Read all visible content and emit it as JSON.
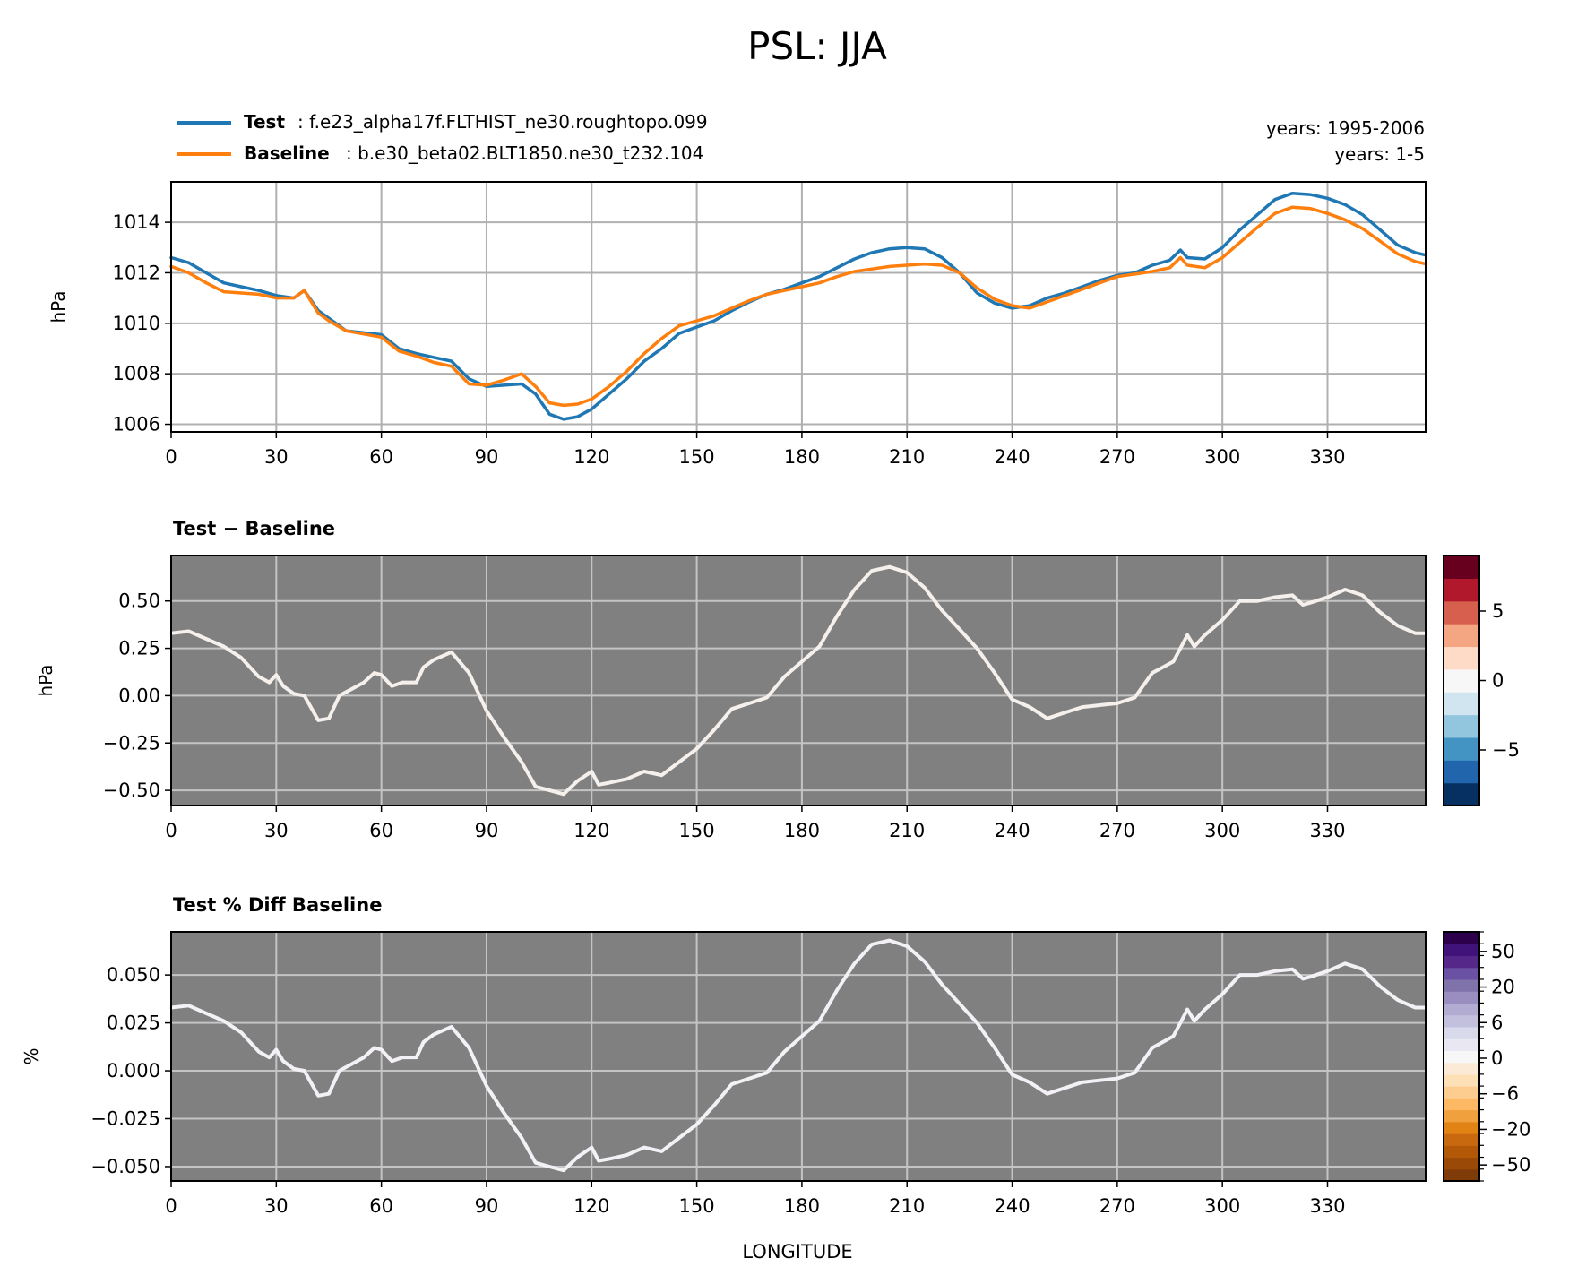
{
  "figure": {
    "title": "PSL: JJA",
    "legend": [
      {
        "key": "Test",
        "label": ": f.e23_alpha17f.FLTHIST_ne30.roughtopo.099",
        "color": "#1f77b4"
      },
      {
        "key": "Baseline",
        "label": ": b.e30_beta02.BLT1850.ne30_t232.104",
        "color": "#ff7f0e"
      }
    ],
    "years": [
      "years: 1995-2006",
      "years: 1-5"
    ],
    "xlabel": "LONGITUDE"
  },
  "chart_data": [
    {
      "type": "line",
      "title": "",
      "xlabel": "",
      "ylabel": "hPa",
      "xlim": [
        0,
        358
      ],
      "ylim": [
        1005.7,
        1015.6
      ],
      "xticks": [
        0,
        30,
        60,
        90,
        120,
        150,
        180,
        210,
        240,
        270,
        300,
        330
      ],
      "yticks": [
        1006,
        1008,
        1010,
        1012,
        1014
      ],
      "ytick_labels": [
        "1006",
        "1008",
        "1010",
        "1012",
        "1014"
      ],
      "grid": true,
      "series": [
        {
          "name": "Test",
          "color": "#1f77b4",
          "x": [
            0,
            5,
            10,
            15,
            20,
            25,
            30,
            35,
            38,
            42,
            45,
            50,
            60,
            65,
            70,
            75,
            80,
            85,
            90,
            95,
            100,
            104,
            108,
            112,
            116,
            120,
            125,
            130,
            135,
            140,
            145,
            150,
            155,
            160,
            165,
            170,
            175,
            180,
            185,
            190,
            195,
            200,
            205,
            210,
            215,
            220,
            225,
            230,
            235,
            240,
            245,
            250,
            255,
            260,
            265,
            270,
            275,
            280,
            285,
            288,
            290,
            295,
            300,
            305,
            310,
            315,
            320,
            325,
            330,
            335,
            340,
            345,
            350,
            355,
            358
          ],
          "values": [
            1012.6,
            1012.4,
            1012.0,
            1011.6,
            1011.45,
            1011.3,
            1011.1,
            1011.0,
            1011.3,
            1010.5,
            1010.2,
            1009.7,
            1009.55,
            1009.0,
            1008.8,
            1008.65,
            1008.5,
            1007.8,
            1007.5,
            1007.55,
            1007.6,
            1007.2,
            1006.4,
            1006.2,
            1006.3,
            1006.6,
            1007.2,
            1007.8,
            1008.5,
            1009.0,
            1009.6,
            1009.85,
            1010.1,
            1010.5,
            1010.85,
            1011.15,
            1011.35,
            1011.6,
            1011.85,
            1012.2,
            1012.55,
            1012.8,
            1012.95,
            1013.0,
            1012.95,
            1012.6,
            1012.0,
            1011.2,
            1010.8,
            1010.6,
            1010.7,
            1011.0,
            1011.2,
            1011.45,
            1011.7,
            1011.9,
            1012.0,
            1012.3,
            1012.5,
            1012.9,
            1012.6,
            1012.55,
            1013.0,
            1013.7,
            1014.3,
            1014.9,
            1015.15,
            1015.1,
            1014.95,
            1014.7,
            1014.3,
            1013.7,
            1013.1,
            1012.8,
            1012.7
          ]
        },
        {
          "name": "Baseline",
          "color": "#ff7f0e",
          "x": [
            0,
            5,
            10,
            15,
            20,
            25,
            30,
            35,
            38,
            42,
            45,
            50,
            60,
            65,
            70,
            75,
            80,
            85,
            90,
            95,
            100,
            104,
            108,
            112,
            116,
            120,
            125,
            130,
            135,
            140,
            145,
            150,
            155,
            160,
            165,
            170,
            175,
            180,
            185,
            190,
            195,
            200,
            205,
            210,
            215,
            220,
            225,
            230,
            235,
            240,
            245,
            250,
            255,
            260,
            265,
            270,
            275,
            280,
            285,
            288,
            290,
            295,
            300,
            305,
            310,
            315,
            320,
            325,
            330,
            335,
            340,
            345,
            350,
            355,
            358
          ],
          "values": [
            1012.25,
            1012.0,
            1011.6,
            1011.25,
            1011.2,
            1011.15,
            1011.0,
            1011.0,
            1011.3,
            1010.4,
            1010.1,
            1009.7,
            1009.45,
            1008.9,
            1008.7,
            1008.45,
            1008.3,
            1007.6,
            1007.55,
            1007.75,
            1008.0,
            1007.5,
            1006.85,
            1006.75,
            1006.8,
            1007.0,
            1007.5,
            1008.1,
            1008.8,
            1009.4,
            1009.9,
            1010.1,
            1010.3,
            1010.6,
            1010.9,
            1011.15,
            1011.3,
            1011.45,
            1011.6,
            1011.85,
            1012.05,
            1012.15,
            1012.25,
            1012.3,
            1012.35,
            1012.3,
            1012.0,
            1011.4,
            1010.95,
            1010.7,
            1010.6,
            1010.85,
            1011.1,
            1011.35,
            1011.6,
            1011.85,
            1011.95,
            1012.05,
            1012.2,
            1012.6,
            1012.3,
            1012.2,
            1012.6,
            1013.2,
            1013.8,
            1014.35,
            1014.6,
            1014.55,
            1014.35,
            1014.1,
            1013.75,
            1013.25,
            1012.75,
            1012.45,
            1012.35
          ]
        }
      ]
    },
    {
      "type": "line",
      "title": "Test − Baseline",
      "xlabel": "",
      "ylabel": "hPa",
      "xlim": [
        0,
        358
      ],
      "ylim": [
        -0.58,
        0.74
      ],
      "xticks": [
        0,
        30,
        60,
        90,
        120,
        150,
        180,
        210,
        240,
        270,
        300,
        330
      ],
      "yticks": [
        -0.5,
        -0.25,
        0,
        0.25,
        0.5
      ],
      "ytick_labels": [
        "−0.50",
        "−0.25",
        "0.00",
        "0.25",
        "0.50"
      ],
      "grid": true,
      "background": "#808080",
      "colorbar": {
        "range": [
          -9,
          9
        ],
        "ticks": [
          -5,
          0,
          5
        ],
        "tick_labels": [
          "−5",
          "0",
          "5"
        ],
        "colors": [
          "#053061",
          "#2166ac",
          "#4393c3",
          "#92c5de",
          "#d1e5f0",
          "#f7f7f7",
          "#fddbc7",
          "#f4a582",
          "#d6604d",
          "#b2182b",
          "#67001f"
        ]
      },
      "series": [
        {
          "name": "Test − Baseline",
          "color": "#f5f0ec",
          "x": [
            0,
            5,
            10,
            15,
            20,
            25,
            28,
            30,
            32,
            35,
            38,
            42,
            45,
            48,
            52,
            55,
            58,
            60,
            63,
            66,
            70,
            72,
            75,
            80,
            85,
            90,
            95,
            100,
            104,
            108,
            112,
            116,
            120,
            122,
            125,
            130,
            135,
            140,
            145,
            150,
            155,
            160,
            165,
            170,
            175,
            180,
            185,
            190,
            195,
            200,
            205,
            210,
            215,
            220,
            225,
            230,
            235,
            240,
            245,
            250,
            255,
            260,
            265,
            270,
            275,
            280,
            283,
            286,
            288,
            290,
            292,
            295,
            300,
            305,
            310,
            315,
            320,
            323,
            325,
            330,
            335,
            340,
            345,
            350,
            355,
            358
          ],
          "values": [
            0.33,
            0.34,
            0.3,
            0.26,
            0.2,
            0.1,
            0.07,
            0.11,
            0.05,
            0.01,
            0.0,
            -0.13,
            -0.12,
            0.0,
            0.04,
            0.07,
            0.12,
            0.11,
            0.05,
            0.07,
            0.07,
            0.15,
            0.19,
            0.23,
            0.12,
            -0.08,
            -0.22,
            -0.35,
            -0.48,
            -0.5,
            -0.52,
            -0.45,
            -0.4,
            -0.47,
            -0.46,
            -0.44,
            -0.4,
            -0.42,
            -0.35,
            -0.28,
            -0.18,
            -0.07,
            -0.04,
            -0.01,
            0.1,
            0.18,
            0.26,
            0.42,
            0.56,
            0.66,
            0.68,
            0.65,
            0.57,
            0.45,
            0.35,
            0.25,
            0.12,
            -0.02,
            -0.06,
            -0.12,
            -0.09,
            -0.06,
            -0.05,
            -0.04,
            -0.01,
            0.12,
            0.15,
            0.18,
            0.25,
            0.32,
            0.26,
            0.32,
            0.4,
            0.5,
            0.5,
            0.52,
            0.53,
            0.48,
            0.49,
            0.52,
            0.56,
            0.53,
            0.44,
            0.37,
            0.33,
            0.33
          ]
        }
      ]
    },
    {
      "type": "line",
      "title": "Test % Diff Baseline",
      "xlabel": "LONGITUDE",
      "ylabel": "%",
      "xlim": [
        0,
        358
      ],
      "ylim": [
        -0.0575,
        0.0725
      ],
      "xticks": [
        0,
        30,
        60,
        90,
        120,
        150,
        180,
        210,
        240,
        270,
        300,
        330
      ],
      "yticks": [
        -0.05,
        -0.025,
        0,
        0.025,
        0.05
      ],
      "ytick_labels": [
        "−0.050",
        "−0.025",
        "0.000",
        "0.025",
        "0.050"
      ],
      "grid": true,
      "background": "#808080",
      "colorbar": {
        "tick_labels": [
          "−50",
          "−20",
          "−6",
          "0",
          "6",
          "20",
          "50"
        ],
        "colors": [
          "#7f3b08",
          "#9a4a06",
          "#b35806",
          "#c8690f",
          "#e08214",
          "#f0a03c",
          "#fdb863",
          "#fdcc8f",
          "#fee0b6",
          "#fbebd6",
          "#f7f7f7",
          "#e9e8f2",
          "#d8daeb",
          "#c2c0dd",
          "#b2abd2",
          "#9a8dc0",
          "#8073ac",
          "#6a51a3",
          "#542788",
          "#3f137a",
          "#2d004b"
        ]
      },
      "series": [
        {
          "name": "Test % Diff Baseline",
          "color": "#f3f1f6",
          "x": [
            0,
            5,
            10,
            15,
            20,
            25,
            28,
            30,
            32,
            35,
            38,
            42,
            45,
            48,
            52,
            55,
            58,
            60,
            63,
            66,
            70,
            72,
            75,
            80,
            85,
            90,
            95,
            100,
            104,
            108,
            112,
            116,
            120,
            122,
            125,
            130,
            135,
            140,
            145,
            150,
            155,
            160,
            165,
            170,
            175,
            180,
            185,
            190,
            195,
            200,
            205,
            210,
            215,
            220,
            225,
            230,
            235,
            240,
            245,
            250,
            255,
            260,
            265,
            270,
            275,
            280,
            283,
            286,
            288,
            290,
            292,
            295,
            300,
            305,
            310,
            315,
            320,
            323,
            325,
            330,
            335,
            340,
            345,
            350,
            355,
            358
          ],
          "values": [
            0.033,
            0.034,
            0.03,
            0.026,
            0.02,
            0.01,
            0.007,
            0.011,
            0.005,
            0.001,
            0.0,
            -0.013,
            -0.012,
            0.0,
            0.004,
            0.007,
            0.012,
            0.011,
            0.005,
            0.007,
            0.007,
            0.015,
            0.019,
            0.023,
            0.012,
            -0.008,
            -0.022,
            -0.035,
            -0.048,
            -0.05,
            -0.052,
            -0.045,
            -0.04,
            -0.047,
            -0.046,
            -0.044,
            -0.04,
            -0.042,
            -0.035,
            -0.028,
            -0.018,
            -0.007,
            -0.004,
            -0.001,
            0.01,
            0.018,
            0.026,
            0.042,
            0.056,
            0.066,
            0.068,
            0.065,
            0.057,
            0.045,
            0.035,
            0.025,
            0.012,
            -0.002,
            -0.006,
            -0.012,
            -0.009,
            -0.006,
            -0.005,
            -0.004,
            -0.001,
            0.012,
            0.015,
            0.018,
            0.025,
            0.032,
            0.026,
            0.032,
            0.04,
            0.05,
            0.05,
            0.052,
            0.053,
            0.048,
            0.049,
            0.052,
            0.056,
            0.053,
            0.044,
            0.037,
            0.033,
            0.033
          ]
        }
      ]
    }
  ]
}
